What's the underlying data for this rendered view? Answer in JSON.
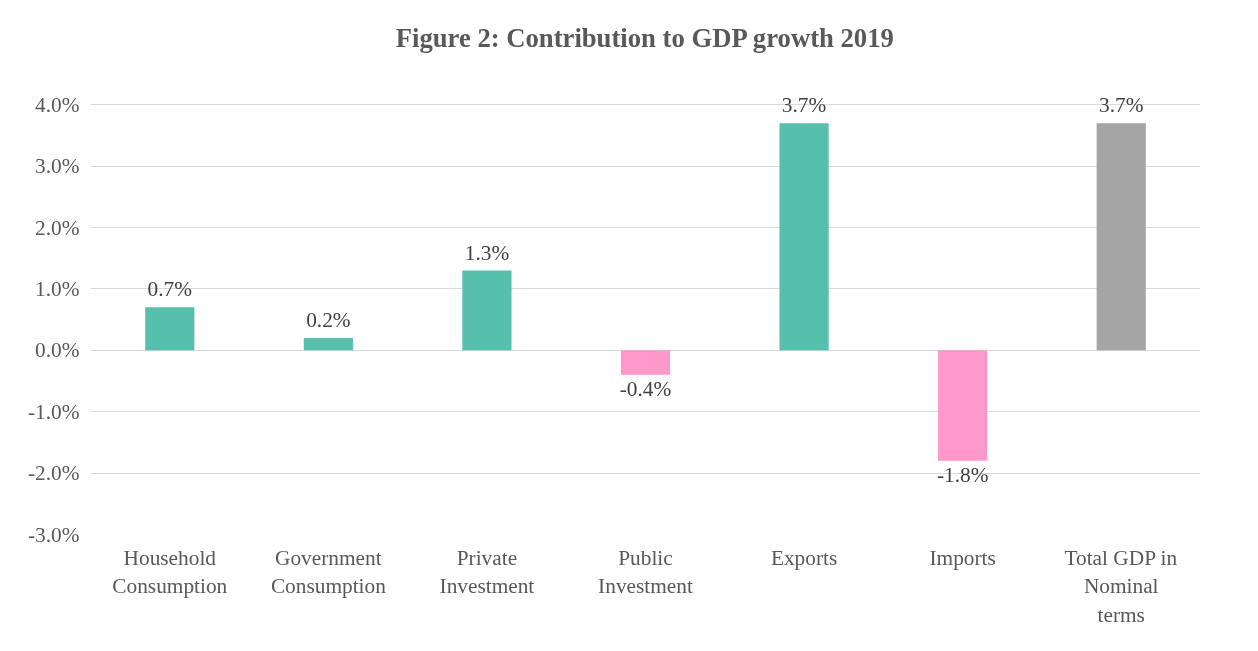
{
  "chart_data": {
    "type": "bar",
    "title": "Figure 2: Contribution to GDP growth 2019",
    "categories": [
      "Household Consumption",
      "Government Consumption",
      "Private Investment",
      "Public Investment",
      "Exports",
      "Imports",
      "Total GDP in Nominal terms"
    ],
    "values": [
      0.7,
      0.2,
      1.3,
      -0.4,
      3.7,
      -1.8,
      3.7
    ],
    "colors": [
      "#56c0ad",
      "#56c0ad",
      "#56c0ad",
      "#ff99cc",
      "#56c0ad",
      "#ff99cc",
      "#a5a5a5"
    ],
    "value_labels": [
      "0.7%",
      "0.2%",
      "1.3%",
      "-0.4%",
      "3.7%",
      "-1.8%",
      "3.7%"
    ],
    "ylim": [
      -3,
      4
    ],
    "yticks": [
      {
        "value": -3,
        "label": "-3.0%"
      },
      {
        "value": -2,
        "label": "-2.0%"
      },
      {
        "value": -1,
        "label": "-1.0%"
      },
      {
        "value": 0,
        "label": "0.0%"
      },
      {
        "value": 1,
        "label": "1.0%"
      },
      {
        "value": 2,
        "label": "2.0%"
      },
      {
        "value": 3,
        "label": "3.0%"
      },
      {
        "value": 4,
        "label": "4.0%"
      }
    ],
    "grid": "y"
  }
}
